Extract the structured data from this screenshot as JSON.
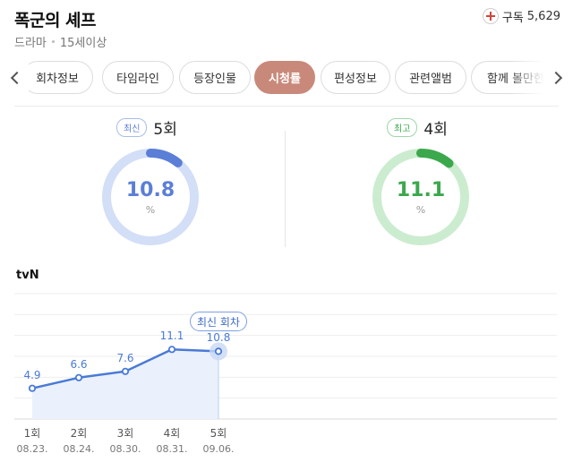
{
  "header": {
    "title": "폭군의 셰프",
    "genre": "드라마",
    "age_rating": "15세이상",
    "subscribe_label": "구독",
    "subscribe_count": "5,629"
  },
  "tabs": [
    {
      "label": "회차정보",
      "active": false
    },
    {
      "label": "타임라인",
      "active": false
    },
    {
      "label": "등장인물",
      "active": false
    },
    {
      "label": "시청률",
      "active": true
    },
    {
      "label": "편성정보",
      "active": false
    },
    {
      "label": "관련앨범",
      "active": false
    },
    {
      "label": "함께 볼만한",
      "active": false
    }
  ],
  "ratings": {
    "latest": {
      "badge": "최신",
      "episode": "5회",
      "value": "10.8",
      "unit": "%",
      "color": "#5b7fd6",
      "track": "#d3def7"
    },
    "best": {
      "badge": "최고",
      "episode": "4회",
      "value": "11.1",
      "unit": "%",
      "color": "#3ba84c",
      "track": "#ccecd0"
    }
  },
  "chart_data": {
    "type": "line",
    "channel": "tvN",
    "x": [
      "1회",
      "2회",
      "3회",
      "4회",
      "5회"
    ],
    "dates": [
      "08.23.",
      "08.24.",
      "08.30.",
      "08.31.",
      "09.06."
    ],
    "values": [
      4.9,
      6.6,
      7.6,
      11.1,
      10.8
    ],
    "labels": [
      "4.9",
      "6.6",
      "7.6",
      "11.1",
      "10.8"
    ],
    "highlight_label": "최신 회차",
    "highlight_index": 4,
    "ylim": [
      0,
      20
    ],
    "grid": true,
    "line_color": "#4a7ad6",
    "fill_color": "#eaf1fc"
  }
}
